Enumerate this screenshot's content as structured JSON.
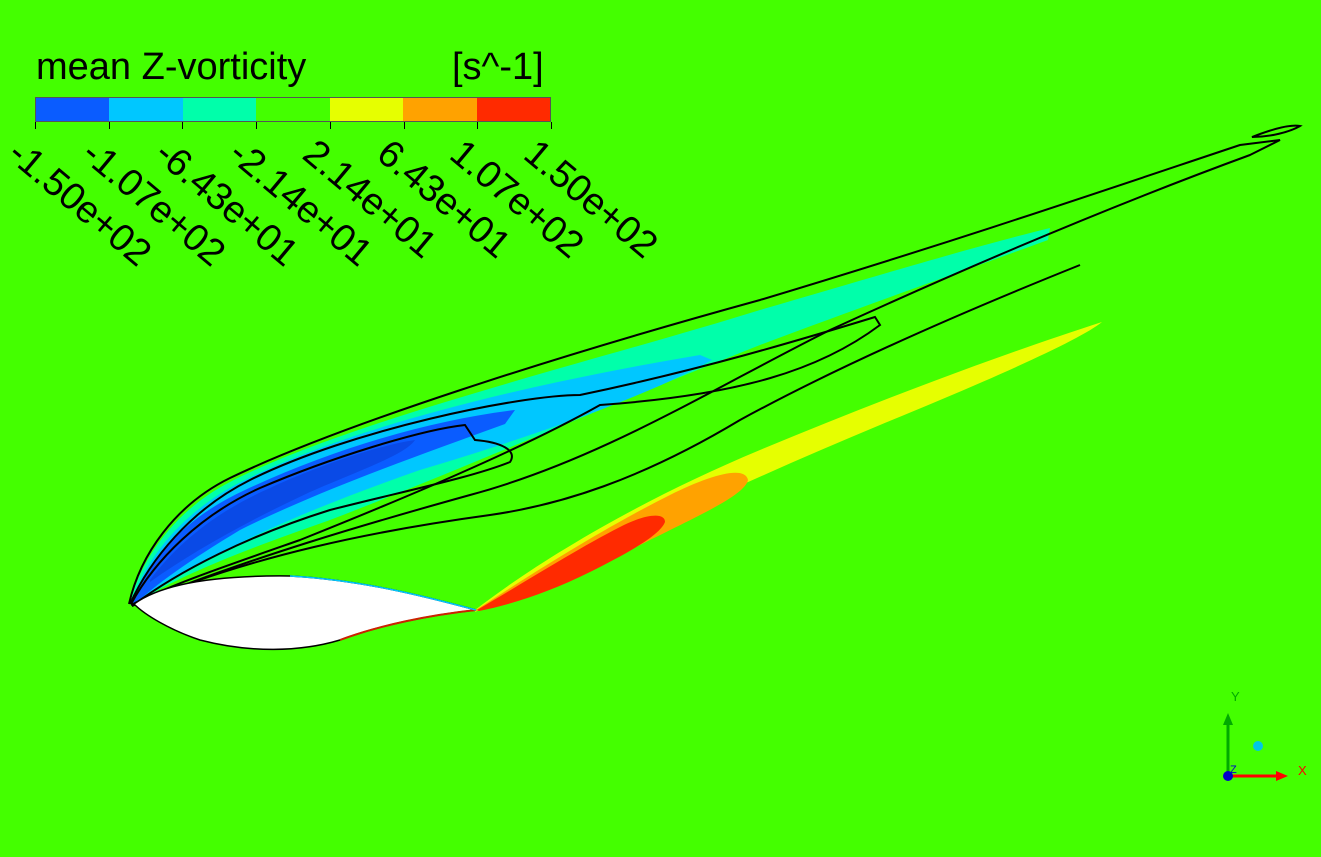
{
  "legend": {
    "title": "mean Z-vorticity",
    "unit": "[s^-1]",
    "band_colors": [
      "#0a5cff",
      "#00c7ff",
      "#00ffaa",
      "#44ff00",
      "#e6ff00",
      "#ffa200",
      "#ff2a00"
    ],
    "ticks": [
      "-1.50e+02",
      "-1.07e+02",
      "-6.43e+01",
      "-2.14e+01",
      "2.14e+01",
      "6.43e+01",
      "1.07e+02",
      "1.50e+02"
    ]
  },
  "colors": {
    "background": "#44ff00",
    "airfoil": "#ffffff",
    "contour_line": "#000000"
  },
  "axes": {
    "x_label": "X",
    "y_label": "Y",
    "z_label": "Z"
  }
}
